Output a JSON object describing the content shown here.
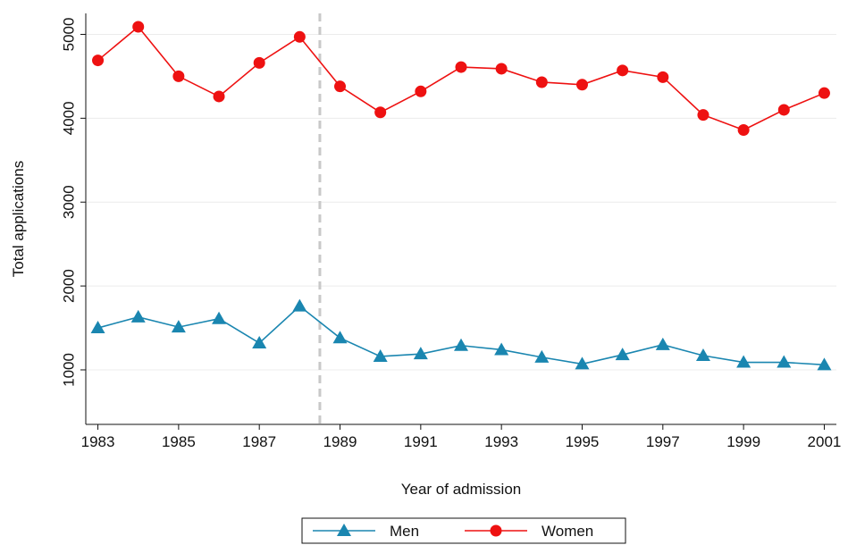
{
  "chart_data": {
    "type": "line",
    "x_label": "Year of admission",
    "y_label": "Total applications",
    "x": [
      1983,
      1984,
      1985,
      1986,
      1987,
      1988,
      1989,
      1990,
      1991,
      1992,
      1993,
      1994,
      1995,
      1996,
      1997,
      1998,
      1999,
      2000,
      2001
    ],
    "series": [
      {
        "name": "Men",
        "color": "#1a86b0",
        "marker": "triangle",
        "values": [
          1500,
          1630,
          1510,
          1610,
          1320,
          1760,
          1380,
          1160,
          1190,
          1290,
          1240,
          1150,
          1070,
          1180,
          1300,
          1170,
          1090,
          1090,
          1060
        ]
      },
      {
        "name": "Women",
        "color": "#ee1111",
        "marker": "circle",
        "values": [
          4690,
          5090,
          4500,
          4260,
          4660,
          4970,
          4380,
          4070,
          4320,
          4610,
          4590,
          4430,
          4400,
          4570,
          4490,
          4040,
          3860,
          4100,
          4300
        ]
      }
    ],
    "xlim": [
      1982.7,
      2001.3
    ],
    "ylim": [
      350,
      5250
    ],
    "xticks": [
      1983,
      1985,
      1987,
      1989,
      1991,
      1993,
      1995,
      1997,
      1999,
      2001
    ],
    "yticks": [
      1000,
      2000,
      3000,
      4000,
      5000
    ],
    "grid": true,
    "vline": 1988.5,
    "legend": "bottom"
  }
}
